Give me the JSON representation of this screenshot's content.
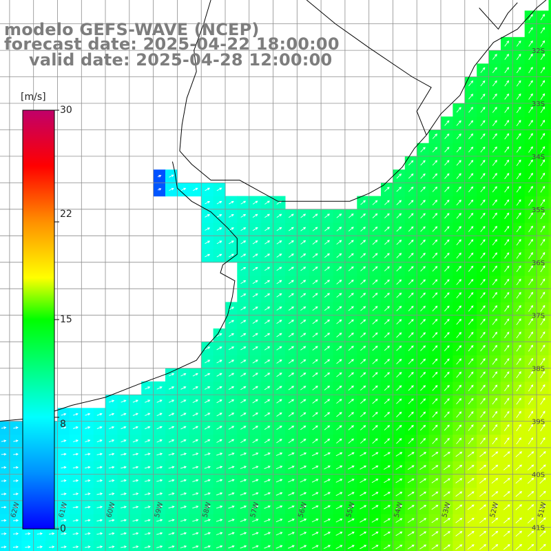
{
  "title": {
    "line1": "modelo GEFS-WAVE (NCEP)",
    "line2": "forecast date: 2025-04-22 18:00:00",
    "line3": "valid date: 2025-04-28 12:00:00"
  },
  "colorbar": {
    "units": "[m/s]",
    "ticks": [
      {
        "label": "30",
        "value": 30
      },
      {
        "label": "22",
        "value": 22
      },
      {
        "label": "15",
        "value": 15
      },
      {
        "label": "8",
        "value": 8
      },
      {
        "label": "0",
        "value": 0
      }
    ],
    "colors": [
      "#0000ff",
      "#0090ff",
      "#00ffff",
      "#00ff00",
      "#ffff00",
      "#ff9000",
      "#ff0000",
      "#c0006a"
    ]
  },
  "lat_labels": [
    "32S",
    "33S",
    "34S",
    "35S",
    "36S",
    "37S",
    "38S",
    "39S",
    "40S",
    "41S"
  ],
  "lon_labels": [
    "62W",
    "61W",
    "60W",
    "59W",
    "58W",
    "57W",
    "56W",
    "55W",
    "54W",
    "53W",
    "52W",
    "51W"
  ],
  "map": {
    "extent": {
      "lon_min": -62.2,
      "lon_max": -50.7,
      "lat_min": -41.45,
      "lat_max": -31.05
    },
    "land_color": "#ffffff",
    "grid_color": "#8c8c8c",
    "coast_color": "#000000",
    "arrow_color": "#ffffff"
  }
}
